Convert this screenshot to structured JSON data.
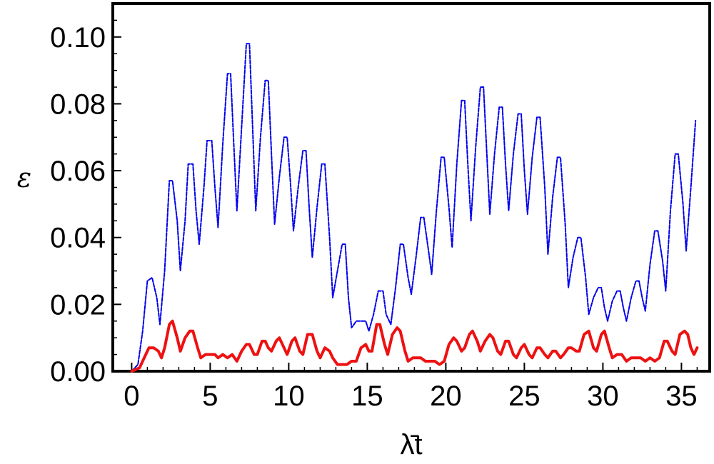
{
  "chart_data": {
    "type": "line",
    "title": "",
    "xlabel": "λ̄t",
    "ylabel": "ε",
    "xlim": [
      -1.2,
      36.8
    ],
    "ylim": [
      0.0,
      0.11
    ],
    "x_ticks": [
      "0",
      "5",
      "10",
      "15",
      "20",
      "25",
      "30",
      "35"
    ],
    "y_ticks": [
      "0.00",
      "0.02",
      "0.04",
      "0.06",
      "0.08",
      "0.10"
    ],
    "grid": false,
    "legend": "none",
    "series": [
      {
        "color": "#0000ee",
        "style": "dashed",
        "points": [
          [
            0.0,
            0.0
          ],
          [
            0.4,
            0.002
          ],
          [
            0.7,
            0.012
          ],
          [
            1.0,
            0.027
          ],
          [
            1.3,
            0.028
          ],
          [
            1.6,
            0.022
          ],
          [
            1.8,
            0.014
          ],
          [
            2.1,
            0.03
          ],
          [
            2.4,
            0.057
          ],
          [
            2.6,
            0.057
          ],
          [
            2.9,
            0.045
          ],
          [
            3.1,
            0.03
          ],
          [
            3.4,
            0.045
          ],
          [
            3.6,
            0.062
          ],
          [
            3.9,
            0.062
          ],
          [
            4.1,
            0.048
          ],
          [
            4.3,
            0.038
          ],
          [
            4.6,
            0.055
          ],
          [
            4.8,
            0.069
          ],
          [
            5.1,
            0.069
          ],
          [
            5.3,
            0.055
          ],
          [
            5.5,
            0.043
          ],
          [
            5.8,
            0.068
          ],
          [
            6.1,
            0.089
          ],
          [
            6.3,
            0.089
          ],
          [
            6.5,
            0.068
          ],
          [
            6.7,
            0.048
          ],
          [
            7.0,
            0.073
          ],
          [
            7.3,
            0.098
          ],
          [
            7.5,
            0.098
          ],
          [
            7.7,
            0.073
          ],
          [
            7.9,
            0.048
          ],
          [
            8.2,
            0.07
          ],
          [
            8.5,
            0.087
          ],
          [
            8.7,
            0.087
          ],
          [
            8.9,
            0.065
          ],
          [
            9.1,
            0.044
          ],
          [
            9.4,
            0.058
          ],
          [
            9.7,
            0.07
          ],
          [
            9.9,
            0.07
          ],
          [
            10.1,
            0.057
          ],
          [
            10.3,
            0.042
          ],
          [
            10.6,
            0.055
          ],
          [
            10.9,
            0.066
          ],
          [
            11.1,
            0.066
          ],
          [
            11.3,
            0.049
          ],
          [
            11.5,
            0.034
          ],
          [
            11.8,
            0.049
          ],
          [
            12.1,
            0.062
          ],
          [
            12.3,
            0.062
          ],
          [
            12.6,
            0.04
          ],
          [
            12.8,
            0.022
          ],
          [
            13.1,
            0.03
          ],
          [
            13.4,
            0.038
          ],
          [
            13.6,
            0.038
          ],
          [
            13.8,
            0.022
          ],
          [
            14.0,
            0.013
          ],
          [
            14.3,
            0.015
          ],
          [
            14.6,
            0.015
          ],
          [
            14.9,
            0.015
          ],
          [
            15.1,
            0.012
          ],
          [
            15.4,
            0.017
          ],
          [
            15.7,
            0.024
          ],
          [
            16.0,
            0.024
          ],
          [
            16.2,
            0.017
          ],
          [
            16.5,
            0.014
          ],
          [
            16.8,
            0.025
          ],
          [
            17.1,
            0.038
          ],
          [
            17.3,
            0.038
          ],
          [
            17.6,
            0.028
          ],
          [
            17.8,
            0.023
          ],
          [
            18.1,
            0.034
          ],
          [
            18.4,
            0.046
          ],
          [
            18.6,
            0.046
          ],
          [
            18.9,
            0.036
          ],
          [
            19.1,
            0.029
          ],
          [
            19.4,
            0.048
          ],
          [
            19.7,
            0.064
          ],
          [
            19.9,
            0.064
          ],
          [
            20.2,
            0.049
          ],
          [
            20.4,
            0.037
          ],
          [
            20.7,
            0.062
          ],
          [
            21.0,
            0.081
          ],
          [
            21.2,
            0.081
          ],
          [
            21.4,
            0.062
          ],
          [
            21.6,
            0.045
          ],
          [
            21.9,
            0.067
          ],
          [
            22.2,
            0.085
          ],
          [
            22.4,
            0.085
          ],
          [
            22.6,
            0.066
          ],
          [
            22.8,
            0.047
          ],
          [
            23.1,
            0.065
          ],
          [
            23.4,
            0.079
          ],
          [
            23.6,
            0.079
          ],
          [
            23.8,
            0.062
          ],
          [
            24.0,
            0.048
          ],
          [
            24.3,
            0.065
          ],
          [
            24.6,
            0.077
          ],
          [
            24.8,
            0.077
          ],
          [
            25.0,
            0.06
          ],
          [
            25.2,
            0.047
          ],
          [
            25.5,
            0.064
          ],
          [
            25.8,
            0.076
          ],
          [
            26.0,
            0.076
          ],
          [
            26.3,
            0.055
          ],
          [
            26.5,
            0.035
          ],
          [
            26.8,
            0.052
          ],
          [
            27.1,
            0.064
          ],
          [
            27.3,
            0.064
          ],
          [
            27.6,
            0.044
          ],
          [
            27.8,
            0.025
          ],
          [
            28.1,
            0.034
          ],
          [
            28.4,
            0.04
          ],
          [
            28.6,
            0.04
          ],
          [
            28.9,
            0.028
          ],
          [
            29.1,
            0.017
          ],
          [
            29.4,
            0.022
          ],
          [
            29.7,
            0.025
          ],
          [
            29.9,
            0.025
          ],
          [
            30.1,
            0.019
          ],
          [
            30.3,
            0.015
          ],
          [
            30.6,
            0.021
          ],
          [
            30.9,
            0.024
          ],
          [
            31.1,
            0.024
          ],
          [
            31.3,
            0.019
          ],
          [
            31.5,
            0.015
          ],
          [
            31.8,
            0.022
          ],
          [
            32.1,
            0.027
          ],
          [
            32.3,
            0.027
          ],
          [
            32.5,
            0.022
          ],
          [
            32.7,
            0.018
          ],
          [
            33.0,
            0.032
          ],
          [
            33.3,
            0.042
          ],
          [
            33.5,
            0.042
          ],
          [
            33.8,
            0.033
          ],
          [
            34.0,
            0.024
          ],
          [
            34.3,
            0.048
          ],
          [
            34.6,
            0.065
          ],
          [
            34.8,
            0.065
          ],
          [
            35.1,
            0.05
          ],
          [
            35.3,
            0.036
          ],
          [
            35.6,
            0.055
          ],
          [
            35.9,
            0.075
          ]
        ]
      },
      {
        "color": "#ee1111",
        "style": "solid",
        "points": [
          [
            0.0,
            0.0
          ],
          [
            0.5,
            0.001
          ],
          [
            0.8,
            0.004
          ],
          [
            1.1,
            0.007
          ],
          [
            1.4,
            0.007
          ],
          [
            1.7,
            0.006
          ],
          [
            1.9,
            0.004
          ],
          [
            2.1,
            0.007
          ],
          [
            2.4,
            0.014
          ],
          [
            2.6,
            0.015
          ],
          [
            2.9,
            0.01
          ],
          [
            3.1,
            0.006
          ],
          [
            3.4,
            0.01
          ],
          [
            3.7,
            0.012
          ],
          [
            3.9,
            0.012
          ],
          [
            4.2,
            0.007
          ],
          [
            4.4,
            0.004
          ],
          [
            4.7,
            0.005
          ],
          [
            5.0,
            0.005
          ],
          [
            5.3,
            0.005
          ],
          [
            5.5,
            0.004
          ],
          [
            5.8,
            0.005
          ],
          [
            6.1,
            0.004
          ],
          [
            6.4,
            0.005
          ],
          [
            6.7,
            0.003
          ],
          [
            7.0,
            0.006
          ],
          [
            7.3,
            0.008
          ],
          [
            7.5,
            0.008
          ],
          [
            7.8,
            0.005
          ],
          [
            8.0,
            0.005
          ],
          [
            8.3,
            0.009
          ],
          [
            8.5,
            0.009
          ],
          [
            8.7,
            0.007
          ],
          [
            8.9,
            0.006
          ],
          [
            9.2,
            0.009
          ],
          [
            9.4,
            0.01
          ],
          [
            9.7,
            0.007
          ],
          [
            9.9,
            0.005
          ],
          [
            10.2,
            0.009
          ],
          [
            10.4,
            0.01
          ],
          [
            10.7,
            0.006
          ],
          [
            10.9,
            0.005
          ],
          [
            11.2,
            0.011
          ],
          [
            11.5,
            0.011
          ],
          [
            11.8,
            0.006
          ],
          [
            12.0,
            0.004
          ],
          [
            12.3,
            0.007
          ],
          [
            12.6,
            0.006
          ],
          [
            12.8,
            0.004
          ],
          [
            13.1,
            0.002
          ],
          [
            13.4,
            0.002
          ],
          [
            13.7,
            0.002
          ],
          [
            14.0,
            0.003
          ],
          [
            14.3,
            0.003
          ],
          [
            14.6,
            0.007
          ],
          [
            14.9,
            0.008
          ],
          [
            15.1,
            0.006
          ],
          [
            15.3,
            0.006
          ],
          [
            15.6,
            0.014
          ],
          [
            15.8,
            0.014
          ],
          [
            16.1,
            0.008
          ],
          [
            16.3,
            0.005
          ],
          [
            16.6,
            0.011
          ],
          [
            16.9,
            0.013
          ],
          [
            17.1,
            0.012
          ],
          [
            17.4,
            0.006
          ],
          [
            17.6,
            0.003
          ],
          [
            17.9,
            0.004
          ],
          [
            18.2,
            0.004
          ],
          [
            18.4,
            0.004
          ],
          [
            18.7,
            0.003
          ],
          [
            19.0,
            0.003
          ],
          [
            19.3,
            0.003
          ],
          [
            19.6,
            0.002
          ],
          [
            19.9,
            0.003
          ],
          [
            20.2,
            0.008
          ],
          [
            20.5,
            0.01
          ],
          [
            20.7,
            0.009
          ],
          [
            21.0,
            0.006
          ],
          [
            21.2,
            0.007
          ],
          [
            21.5,
            0.011
          ],
          [
            21.7,
            0.012
          ],
          [
            22.0,
            0.009
          ],
          [
            22.2,
            0.006
          ],
          [
            22.5,
            0.009
          ],
          [
            22.8,
            0.011
          ],
          [
            23.0,
            0.01
          ],
          [
            23.3,
            0.006
          ],
          [
            23.5,
            0.005
          ],
          [
            23.8,
            0.009
          ],
          [
            24.0,
            0.009
          ],
          [
            24.3,
            0.005
          ],
          [
            24.5,
            0.004
          ],
          [
            24.8,
            0.007
          ],
          [
            25.0,
            0.008
          ],
          [
            25.3,
            0.005
          ],
          [
            25.5,
            0.004
          ],
          [
            25.8,
            0.007
          ],
          [
            26.0,
            0.007
          ],
          [
            26.3,
            0.005
          ],
          [
            26.5,
            0.004
          ],
          [
            26.8,
            0.006
          ],
          [
            27.0,
            0.006
          ],
          [
            27.3,
            0.004
          ],
          [
            27.5,
            0.005
          ],
          [
            27.8,
            0.007
          ],
          [
            28.0,
            0.007
          ],
          [
            28.3,
            0.006
          ],
          [
            28.5,
            0.006
          ],
          [
            28.8,
            0.011
          ],
          [
            29.1,
            0.012
          ],
          [
            29.4,
            0.007
          ],
          [
            29.6,
            0.006
          ],
          [
            29.9,
            0.011
          ],
          [
            30.1,
            0.012
          ],
          [
            30.4,
            0.007
          ],
          [
            30.6,
            0.004
          ],
          [
            30.9,
            0.005
          ],
          [
            31.2,
            0.005
          ],
          [
            31.5,
            0.003
          ],
          [
            31.8,
            0.004
          ],
          [
            32.1,
            0.004
          ],
          [
            32.4,
            0.004
          ],
          [
            32.7,
            0.003
          ],
          [
            33.0,
            0.004
          ],
          [
            33.3,
            0.003
          ],
          [
            33.6,
            0.004
          ],
          [
            33.9,
            0.009
          ],
          [
            34.1,
            0.009
          ],
          [
            34.4,
            0.006
          ],
          [
            34.6,
            0.005
          ],
          [
            34.9,
            0.011
          ],
          [
            35.2,
            0.012
          ],
          [
            35.4,
            0.011
          ],
          [
            35.6,
            0.007
          ],
          [
            35.8,
            0.005
          ],
          [
            36.0,
            0.007
          ]
        ]
      }
    ]
  }
}
